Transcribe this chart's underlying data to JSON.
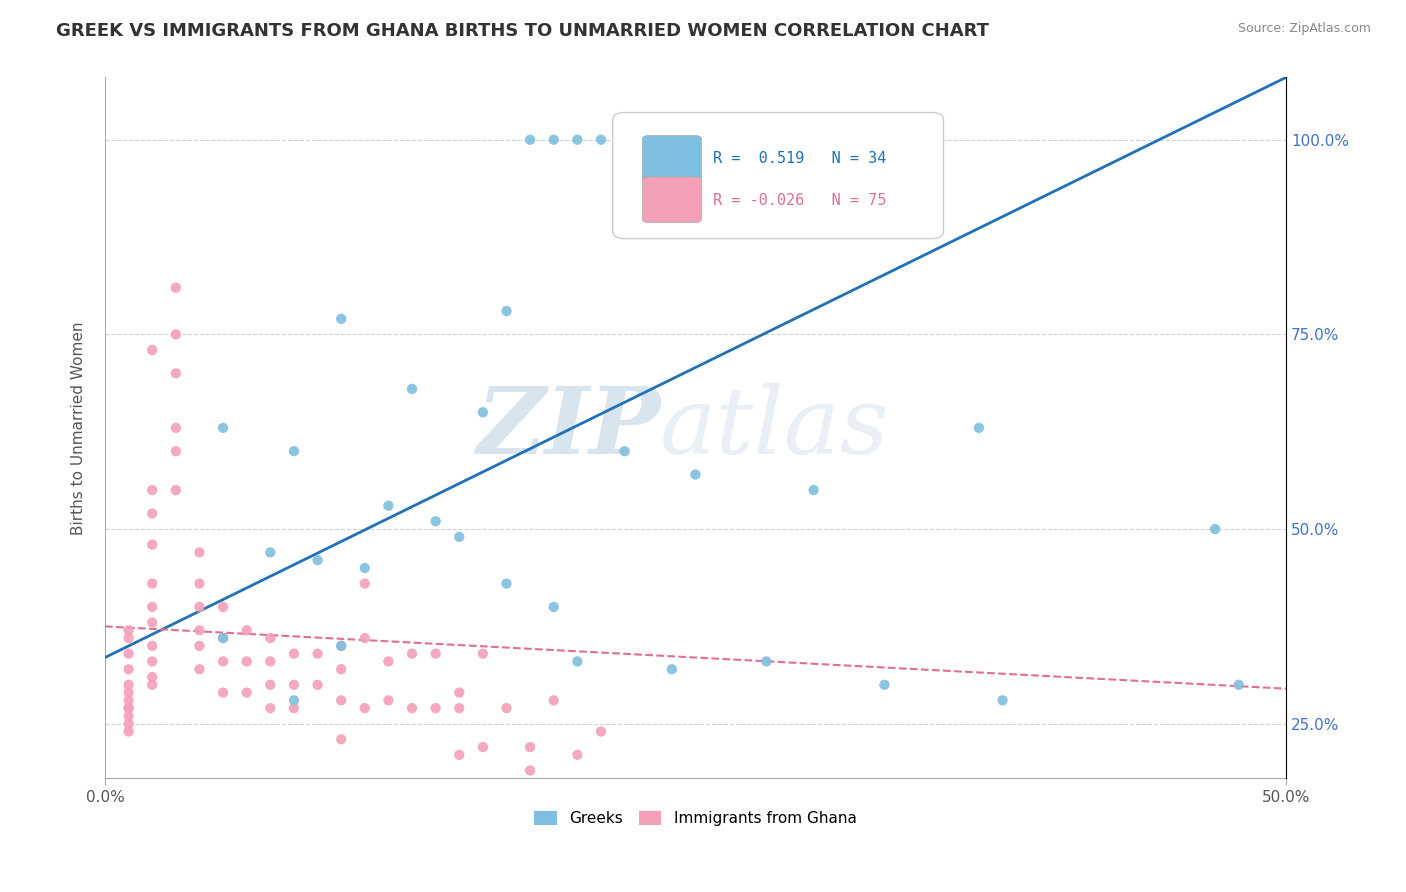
{
  "title": "GREEK VS IMMIGRANTS FROM GHANA BIRTHS TO UNMARRIED WOMEN CORRELATION CHART",
  "source": "Source: ZipAtlas.com",
  "xmin": 0.0,
  "xmax": 0.5,
  "ymin": 0.18,
  "ymax": 1.08,
  "ylabel": "Births to Unmarried Women",
  "legend_blue_r": "0.519",
  "legend_blue_n": "34",
  "legend_pink_r": "-0.026",
  "legend_pink_n": "75",
  "legend_blue_label": "Greeks",
  "legend_pink_label": "Immigrants from Ghana",
  "blue_color": "#7fbfdf",
  "pink_color": "#f4a0b8",
  "trendline_blue_color": "#2171b5",
  "trendline_pink_color": "#e07090",
  "watermark_zip": "ZIP",
  "watermark_atlas": "atlas",
  "blue_trendline_x": [
    0.0,
    0.5
  ],
  "blue_trendline_y": [
    0.335,
    1.08
  ],
  "pink_trendline_x": [
    0.0,
    0.5
  ],
  "pink_trendline_y": [
    0.375,
    0.295
  ],
  "blue_scatter_x": [
    0.18,
    0.19,
    0.2,
    0.21,
    0.22,
    0.23,
    0.17,
    0.1,
    0.13,
    0.16,
    0.05,
    0.08,
    0.22,
    0.25,
    0.3,
    0.12,
    0.14,
    0.15,
    0.07,
    0.09,
    0.11,
    0.17,
    0.19,
    0.05,
    0.1,
    0.37,
    0.2,
    0.24,
    0.28,
    0.33,
    0.38,
    0.47,
    0.48,
    0.08
  ],
  "blue_scatter_y": [
    1.0,
    1.0,
    1.0,
    1.0,
    1.0,
    1.0,
    0.78,
    0.77,
    0.68,
    0.65,
    0.63,
    0.6,
    0.6,
    0.57,
    0.55,
    0.53,
    0.51,
    0.49,
    0.47,
    0.46,
    0.45,
    0.43,
    0.4,
    0.36,
    0.35,
    0.63,
    0.33,
    0.32,
    0.33,
    0.3,
    0.28,
    0.5,
    0.3,
    0.28
  ],
  "pink_scatter_x": [
    0.01,
    0.01,
    0.01,
    0.01,
    0.01,
    0.01,
    0.01,
    0.01,
    0.01,
    0.01,
    0.01,
    0.01,
    0.02,
    0.02,
    0.02,
    0.02,
    0.02,
    0.02,
    0.02,
    0.02,
    0.02,
    0.02,
    0.02,
    0.03,
    0.03,
    0.03,
    0.03,
    0.03,
    0.03,
    0.04,
    0.04,
    0.04,
    0.04,
    0.04,
    0.04,
    0.05,
    0.05,
    0.05,
    0.05,
    0.06,
    0.06,
    0.06,
    0.07,
    0.07,
    0.07,
    0.07,
    0.08,
    0.08,
    0.08,
    0.09,
    0.09,
    0.1,
    0.1,
    0.1,
    0.1,
    0.11,
    0.11,
    0.11,
    0.12,
    0.12,
    0.13,
    0.13,
    0.14,
    0.14,
    0.15,
    0.15,
    0.15,
    0.16,
    0.16,
    0.17,
    0.18,
    0.18,
    0.19,
    0.2,
    0.21
  ],
  "pink_scatter_y": [
    0.37,
    0.36,
    0.34,
    0.32,
    0.3,
    0.29,
    0.28,
    0.27,
    0.27,
    0.26,
    0.25,
    0.24,
    0.73,
    0.55,
    0.52,
    0.48,
    0.43,
    0.4,
    0.38,
    0.35,
    0.33,
    0.31,
    0.3,
    0.81,
    0.75,
    0.7,
    0.63,
    0.6,
    0.55,
    0.47,
    0.43,
    0.4,
    0.37,
    0.35,
    0.32,
    0.4,
    0.36,
    0.33,
    0.29,
    0.37,
    0.33,
    0.29,
    0.36,
    0.33,
    0.3,
    0.27,
    0.34,
    0.3,
    0.27,
    0.34,
    0.3,
    0.35,
    0.32,
    0.28,
    0.23,
    0.43,
    0.36,
    0.27,
    0.33,
    0.28,
    0.34,
    0.27,
    0.34,
    0.27,
    0.29,
    0.27,
    0.21,
    0.34,
    0.22,
    0.27,
    0.22,
    0.19,
    0.28,
    0.21,
    0.24
  ]
}
